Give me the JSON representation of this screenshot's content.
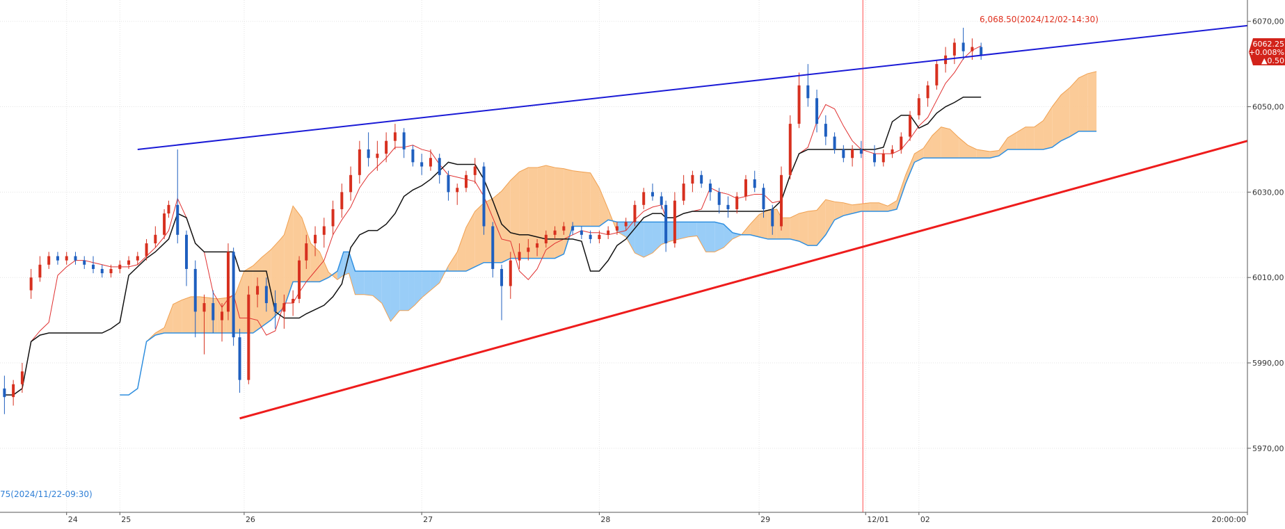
{
  "chart_data": {
    "type": "candlestick",
    "y_axis": {
      "ticks": [
        "6070,00",
        "6050,00",
        "6030,00",
        "6010,00",
        "5990,00",
        "5970,00"
      ],
      "tick_values": [
        6070,
        6050,
        6030,
        6010,
        5990,
        5970
      ],
      "range": [
        5955,
        6075
      ]
    },
    "x_axis": {
      "range_days": [
        23.25,
        37.3
      ],
      "ticks": [
        {
          "label": "24",
          "day": 24.0
        },
        {
          "label": "25",
          "day": 24.6
        },
        {
          "label": "26",
          "day": 26.0
        },
        {
          "label": "27",
          "day": 28.0
        },
        {
          "label": "28",
          "day": 30.0
        },
        {
          "label": "29",
          "day": 31.8
        },
        {
          "label": "12/01",
          "day": 33.0
        },
        {
          "label": "02",
          "day": 33.6
        },
        {
          "label": "20:00:00",
          "day": 37.3
        }
      ]
    },
    "annotations": {
      "high_label": "6,068.50(2024/12/02-14:30)",
      "low_label": "75(2024/11/22-09:30)",
      "current_price": "6062.25",
      "change_pct": "+0.008%",
      "change_pts": "▲0.50"
    },
    "candles": [
      [
        23.3,
        5984,
        5987,
        5978,
        5982
      ],
      [
        23.4,
        5982,
        5986,
        5980,
        5985
      ],
      [
        23.5,
        5985,
        5990,
        5983,
        5988
      ],
      [
        23.6,
        6007,
        6012,
        6005,
        6010
      ],
      [
        23.7,
        6010,
        6015,
        6009,
        6013
      ],
      [
        23.8,
        6013,
        6016,
        6012,
        6015
      ],
      [
        23.9,
        6015,
        6016,
        6013,
        6014
      ],
      [
        24.0,
        6014,
        6016,
        6013,
        6015
      ],
      [
        24.1,
        6015,
        6016,
        6013,
        6014
      ],
      [
        24.2,
        6014,
        6015,
        6012,
        6013
      ],
      [
        24.3,
        6013,
        6015,
        6011,
        6012
      ],
      [
        24.4,
        6012,
        6013,
        6010,
        6011
      ],
      [
        24.5,
        6011,
        6013,
        6010,
        6012
      ],
      [
        24.6,
        6012,
        6014,
        6011,
        6013
      ],
      [
        24.7,
        6013,
        6015,
        6012,
        6014
      ],
      [
        24.8,
        6014,
        6016,
        6013,
        6015
      ],
      [
        24.9,
        6015,
        6019,
        6014,
        6018
      ],
      [
        25.0,
        6018,
        6022,
        6017,
        6020
      ],
      [
        25.1,
        6020,
        6026,
        6019,
        6025
      ],
      [
        25.15,
        6025,
        6028,
        6024,
        6027
      ],
      [
        25.25,
        6027,
        6040,
        6018,
        6020
      ],
      [
        25.35,
        6020,
        6021,
        6008,
        6012
      ],
      [
        25.45,
        6012,
        6014,
        5996,
        6002
      ],
      [
        25.55,
        6002,
        6006,
        5992,
        6004
      ],
      [
        25.65,
        6004,
        6007,
        5997,
        6000
      ],
      [
        25.75,
        6000,
        6004,
        5995,
        6002
      ],
      [
        25.82,
        6002,
        6018,
        6000,
        6016
      ],
      [
        25.88,
        6016,
        6017,
        5994,
        5996
      ],
      [
        25.95,
        5996,
        5998,
        5983,
        5986
      ],
      [
        26.05,
        5986,
        6008,
        5985,
        6006
      ],
      [
        26.15,
        6006,
        6010,
        6003,
        6008
      ],
      [
        26.25,
        6008,
        6010,
        6002,
        6004
      ],
      [
        26.35,
        6004,
        6007,
        5998,
        6002
      ],
      [
        26.45,
        6002,
        6006,
        5998,
        6004
      ],
      [
        26.55,
        6004,
        6007,
        6001,
        6005
      ],
      [
        26.62,
        6005,
        6015,
        6004,
        6014
      ],
      [
        26.7,
        6014,
        6020,
        6012,
        6018
      ],
      [
        26.8,
        6018,
        6022,
        6015,
        6020
      ],
      [
        26.9,
        6020,
        6024,
        6017,
        6022
      ],
      [
        27.0,
        6022,
        6028,
        6020,
        6026
      ],
      [
        27.1,
        6026,
        6032,
        6024,
        6030
      ],
      [
        27.2,
        6030,
        6036,
        6028,
        6034
      ],
      [
        27.3,
        6034,
        6042,
        6032,
        6040
      ],
      [
        27.4,
        6040,
        6044,
        6036,
        6038
      ],
      [
        27.5,
        6038,
        6042,
        6035,
        6039
      ],
      [
        27.6,
        6039,
        6044,
        6037,
        6042
      ],
      [
        27.7,
        6042,
        6046,
        6040,
        6044
      ],
      [
        27.8,
        6044,
        6045,
        6038,
        6040
      ],
      [
        27.9,
        6040,
        6041,
        6036,
        6037
      ],
      [
        28.0,
        6037,
        6039,
        6034,
        6036
      ],
      [
        28.1,
        6036,
        6040,
        6035,
        6038
      ],
      [
        28.2,
        6038,
        6039,
        6032,
        6034
      ],
      [
        28.3,
        6034,
        6035,
        6028,
        6030
      ],
      [
        28.4,
        6030,
        6032,
        6027,
        6031
      ],
      [
        28.5,
        6031,
        6035,
        6030,
        6034
      ],
      [
        28.6,
        6034,
        6038,
        6032,
        6036
      ],
      [
        28.7,
        6036,
        6037,
        6020,
        6022
      ],
      [
        28.8,
        6022,
        6023,
        6010,
        6012
      ],
      [
        28.9,
        6012,
        6013,
        6000,
        6008
      ],
      [
        29.0,
        6008,
        6016,
        6005,
        6014
      ],
      [
        29.1,
        6014,
        6018,
        6012,
        6016
      ],
      [
        29.2,
        6016,
        6019,
        6014,
        6017
      ],
      [
        29.3,
        6017,
        6019,
        6015,
        6018
      ],
      [
        29.4,
        6018,
        6021,
        6017,
        6020
      ],
      [
        29.5,
        6020,
        6022,
        6019,
        6021
      ],
      [
        29.6,
        6021,
        6023,
        6020,
        6022
      ],
      [
        29.7,
        6022,
        6023,
        6020,
        6021
      ],
      [
        29.8,
        6021,
        6022,
        6019,
        6020
      ],
      [
        29.9,
        6020,
        6021,
        6018,
        6019
      ],
      [
        30.0,
        6019,
        6021,
        6018,
        6020
      ],
      [
        30.1,
        6020,
        6022,
        6019,
        6021
      ],
      [
        30.2,
        6021,
        6023,
        6020,
        6022
      ],
      [
        30.3,
        6022,
        6024,
        6021,
        6023
      ],
      [
        30.4,
        6023,
        6028,
        6022,
        6027
      ],
      [
        30.5,
        6027,
        6031,
        6026,
        6030
      ],
      [
        30.6,
        6030,
        6032,
        6028,
        6029
      ],
      [
        30.7,
        6029,
        6030,
        6026,
        6027
      ],
      [
        30.75,
        6027,
        6028,
        6016,
        6018
      ],
      [
        30.85,
        6018,
        6030,
        6017,
        6028
      ],
      [
        30.95,
        6028,
        6034,
        6027,
        6032
      ],
      [
        31.05,
        6032,
        6035,
        6030,
        6034
      ],
      [
        31.15,
        6034,
        6035,
        6031,
        6032
      ],
      [
        31.25,
        6032,
        6033,
        6028,
        6030
      ],
      [
        31.35,
        6030,
        6031,
        6025,
        6027
      ],
      [
        31.45,
        6027,
        6029,
        6024,
        6026
      ],
      [
        31.55,
        6026,
        6030,
        6025,
        6029
      ],
      [
        31.65,
        6029,
        6034,
        6028,
        6033
      ],
      [
        31.75,
        6033,
        6035,
        6030,
        6031
      ],
      [
        31.85,
        6031,
        6032,
        6024,
        6026
      ],
      [
        31.95,
        6026,
        6027,
        6020,
        6022
      ],
      [
        32.05,
        6022,
        6036,
        6021,
        6034
      ],
      [
        32.15,
        6034,
        6048,
        6033,
        6046
      ],
      [
        32.25,
        6046,
        6058,
        6045,
        6055
      ],
      [
        32.35,
        6055,
        6060,
        6050,
        6052
      ],
      [
        32.45,
        6052,
        6054,
        6044,
        6046
      ],
      [
        32.55,
        6046,
        6048,
        6041,
        6043
      ],
      [
        32.65,
        6043,
        6044,
        6039,
        6040
      ],
      [
        32.75,
        6040,
        6041,
        6037,
        6038
      ],
      [
        32.85,
        6038,
        6041,
        6036,
        6040
      ],
      [
        32.95,
        6040,
        6042,
        6038,
        6039
      ],
      [
        33.1,
        6039,
        6041,
        6036,
        6037
      ],
      [
        33.2,
        6037,
        6040,
        6036,
        6039
      ],
      [
        33.3,
        6039,
        6041,
        6038,
        6040
      ],
      [
        33.4,
        6040,
        6044,
        6039,
        6043
      ],
      [
        33.5,
        6043,
        6049,
        6042,
        6048
      ],
      [
        33.6,
        6048,
        6053,
        6047,
        6052
      ],
      [
        33.7,
        6052,
        6056,
        6050,
        6055
      ],
      [
        33.8,
        6055,
        6061,
        6054,
        6060
      ],
      [
        33.9,
        6060,
        6064,
        6058,
        6062
      ],
      [
        34.0,
        6062,
        6066,
        6060,
        6065
      ],
      [
        34.1,
        6065,
        6068.5,
        6061,
        6063
      ],
      [
        34.2,
        6063,
        6066,
        6061,
        6064
      ],
      [
        34.3,
        6064,
        6065,
        6061,
        6062
      ]
    ],
    "upper_trendline": [
      [
        24.8,
        6040
      ],
      [
        37.3,
        6069
      ]
    ],
    "lower_trendline": [
      [
        25.95,
        5977
      ],
      [
        37.3,
        6042
      ]
    ]
  }
}
